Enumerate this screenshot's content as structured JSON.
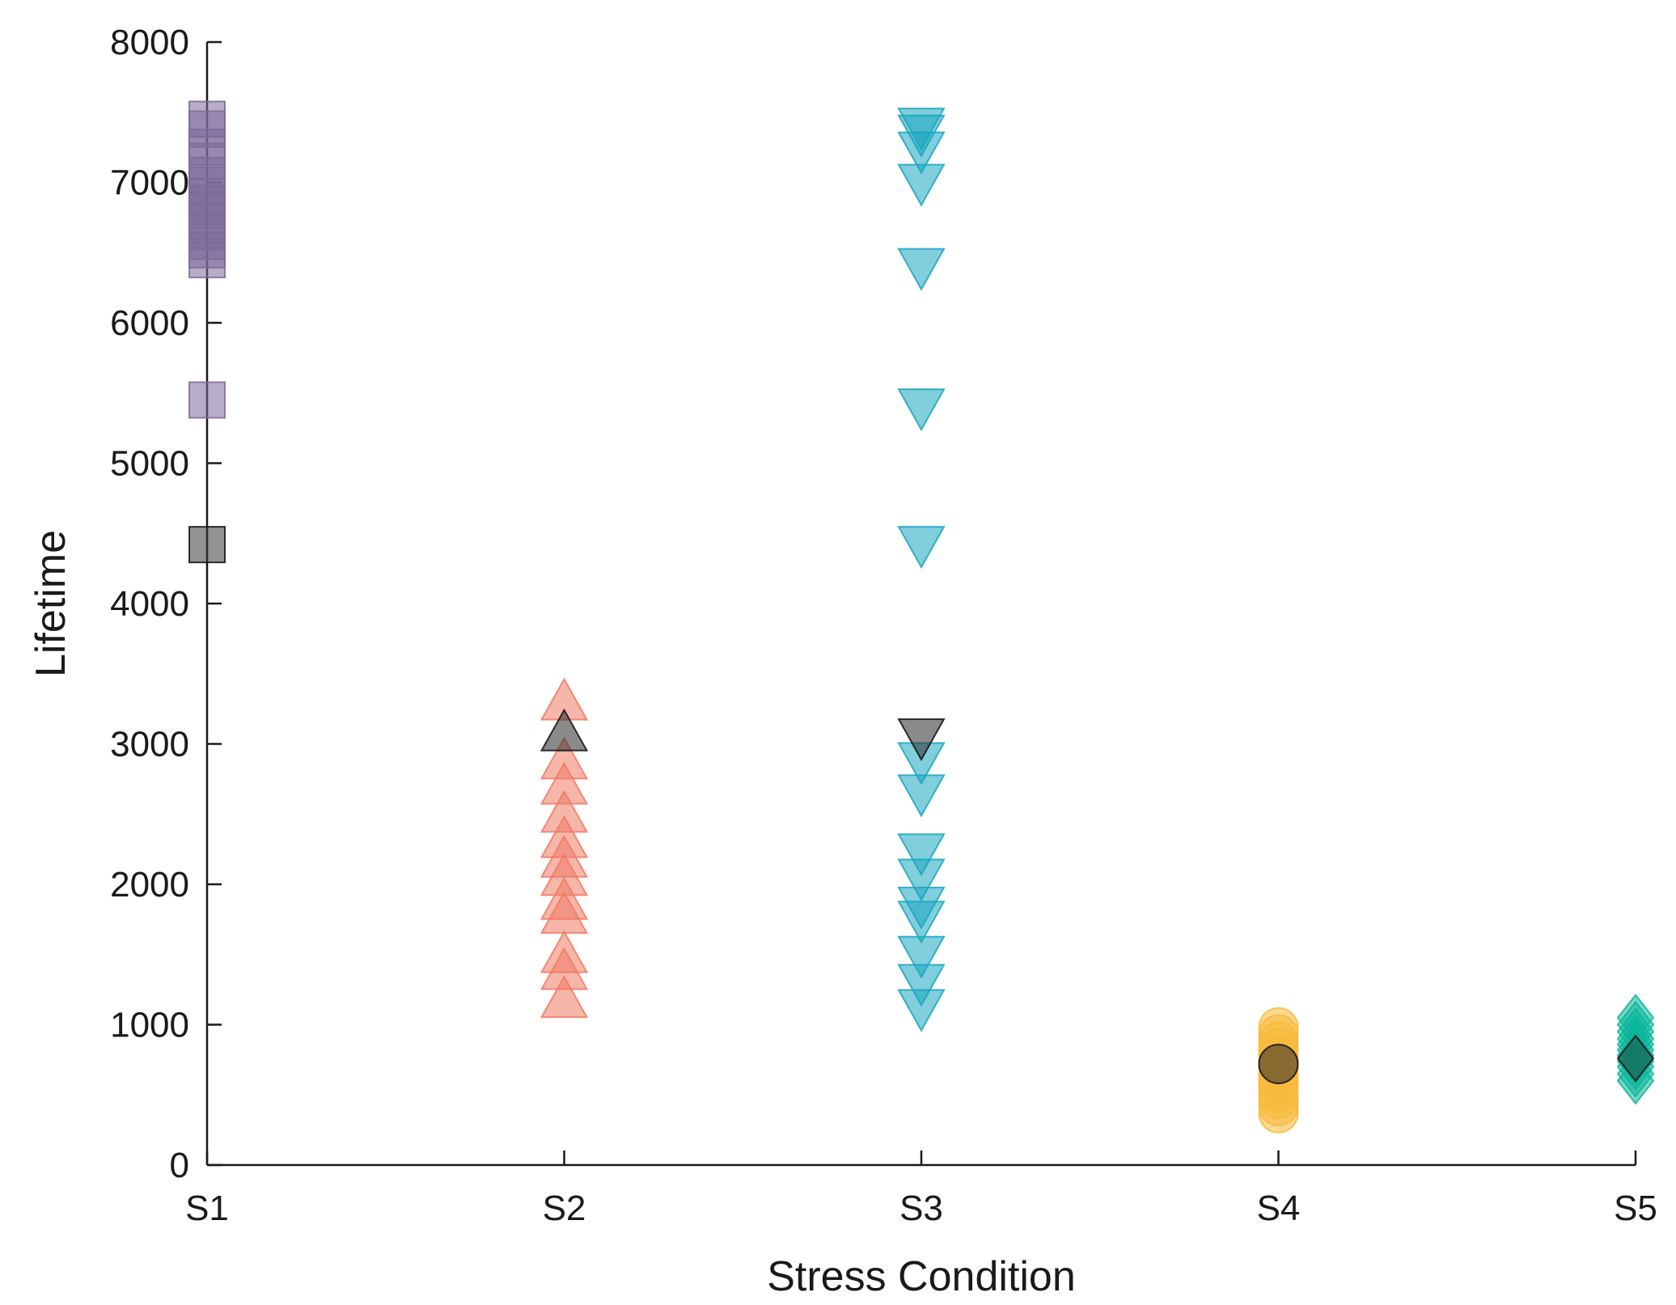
{
  "chart_data": {
    "type": "scatter",
    "title": "",
    "xlabel": "Stress Condition",
    "ylabel": "Lifetime",
    "categories": [
      "S1",
      "S2",
      "S3",
      "S4",
      "S5"
    ],
    "ylim": [
      0,
      8000
    ],
    "yticks": [
      0,
      1000,
      2000,
      3000,
      4000,
      5000,
      6000,
      7000,
      8000
    ],
    "grid": false,
    "legend": "none",
    "series": [
      {
        "name": "S1",
        "category": "S1",
        "marker": "square",
        "color": "#7e6a9a",
        "highlight_color": "#3a3a3a",
        "values": [
          7450,
          7380,
          7250,
          7150,
          7050,
          6980,
          6900,
          6850,
          6800,
          6720,
          6650,
          6580,
          6520,
          6450,
          5450
        ],
        "highlight_values": [
          4420
        ]
      },
      {
        "name": "S2",
        "category": "S2",
        "marker": "triangle-up",
        "color": "#f07a64",
        "highlight_color": "#2a2a2a",
        "values": [
          3300,
          2880,
          2700,
          2500,
          2320,
          2180,
          2050,
          1880,
          1780,
          1500,
          1380,
          1180
        ],
        "highlight_values": [
          3080
        ]
      },
      {
        "name": "S3",
        "category": "S3",
        "marker": "triangle-down",
        "color": "#1aa6c0",
        "highlight_color": "#2a2a2a",
        "values": [
          7400,
          7350,
          7230,
          7000,
          6400,
          5400,
          4420,
          2880,
          2650,
          2230,
          2050,
          1850,
          1750,
          1500,
          1300,
          1120
        ],
        "highlight_values": [
          3050
        ]
      },
      {
        "name": "S4",
        "category": "S4",
        "marker": "circle",
        "color": "#f8b93a",
        "highlight_color": "#2a2a2a",
        "values": [
          980,
          930,
          880,
          830,
          780,
          740,
          700,
          650,
          600,
          560,
          520,
          470,
          420,
          370
        ],
        "highlight_values": [
          720
        ]
      },
      {
        "name": "S5",
        "category": "S5",
        "marker": "diamond",
        "color": "#0ab69a",
        "highlight_color": "#1f4a40",
        "values": [
          1050,
          1000,
          950,
          900,
          860,
          820,
          780,
          740,
          700,
          650,
          600
        ],
        "highlight_values": [
          760
        ]
      }
    ]
  }
}
